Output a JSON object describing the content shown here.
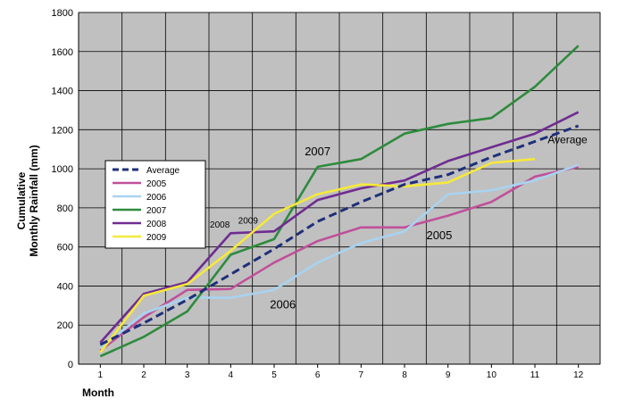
{
  "chart_data": {
    "type": "line",
    "xlabel": "Month",
    "ylabel_line1": "Cumulative",
    "ylabel_line2": "Monthly Rainfall (mm)",
    "ylim": [
      0,
      1800
    ],
    "yticks": [
      0,
      200,
      400,
      600,
      800,
      1000,
      1200,
      1400,
      1600,
      1800
    ],
    "xlim": [
      0.5,
      12.5
    ],
    "xticks": [
      1,
      2,
      3,
      4,
      5,
      6,
      7,
      8,
      9,
      10,
      11,
      12
    ],
    "grid": true,
    "plot_background": "#c0c0c0",
    "legend_position": "left-middle",
    "series": [
      {
        "name": "Average",
        "color": "#1f2f7a",
        "dashed": true,
        "x": [
          1,
          2,
          3,
          4,
          5,
          6,
          7,
          8,
          9,
          10,
          11,
          12
        ],
        "y": [
          100,
          210,
          330,
          460,
          590,
          730,
          830,
          920,
          970,
          1060,
          1140,
          1220
        ]
      },
      {
        "name": "2005",
        "color": "#c0509a",
        "dashed": false,
        "x": [
          1,
          2,
          3,
          4,
          5,
          6,
          7,
          8,
          9,
          10,
          11,
          12
        ],
        "y": [
          70,
          240,
          380,
          385,
          520,
          630,
          700,
          700,
          760,
          830,
          960,
          1010
        ]
      },
      {
        "name": "2006",
        "color": "#a9d3f0",
        "dashed": false,
        "x": [
          1,
          2,
          3,
          4,
          5,
          6,
          7,
          8,
          9,
          10,
          11,
          12
        ],
        "y": [
          80,
          260,
          340,
          340,
          380,
          520,
          620,
          680,
          870,
          890,
          940,
          1020
        ]
      },
      {
        "name": "2007",
        "color": "#2e8b3c",
        "dashed": false,
        "x": [
          1,
          2,
          3,
          4,
          5,
          6,
          7,
          8,
          9,
          10,
          11,
          12
        ],
        "y": [
          40,
          140,
          270,
          560,
          640,
          1010,
          1050,
          1180,
          1230,
          1260,
          1420,
          1630
        ]
      },
      {
        "name": "2008",
        "color": "#6f2c91",
        "dashed": false,
        "x": [
          1,
          2,
          3,
          4,
          5,
          6,
          7,
          8,
          9,
          10,
          11,
          12
        ],
        "y": [
          110,
          360,
          420,
          670,
          680,
          840,
          900,
          940,
          1040,
          1110,
          1180,
          1290
        ]
      },
      {
        "name": "2009",
        "color": "#f5e93a",
        "dashed": false,
        "x": [
          1,
          2,
          3,
          4,
          5,
          6,
          7,
          8,
          9,
          10,
          11
        ],
        "y": [
          60,
          350,
          410,
          580,
          770,
          870,
          920,
          910,
          930,
          1030,
          1050
        ]
      }
    ],
    "annotations": [
      {
        "text": "2007",
        "x": 6.0,
        "y": 1070,
        "size": 13
      },
      {
        "text": "Average",
        "x": 11.75,
        "y": 1130,
        "size": 12
      },
      {
        "text": "2005",
        "x": 8.8,
        "y": 640,
        "size": 13
      },
      {
        "text": "2006",
        "x": 5.2,
        "y": 285,
        "size": 13
      },
      {
        "text": "2008",
        "x": 3.75,
        "y": 700,
        "size": 10
      },
      {
        "text": "2009",
        "x": 4.4,
        "y": 720,
        "size": 10
      }
    ]
  }
}
